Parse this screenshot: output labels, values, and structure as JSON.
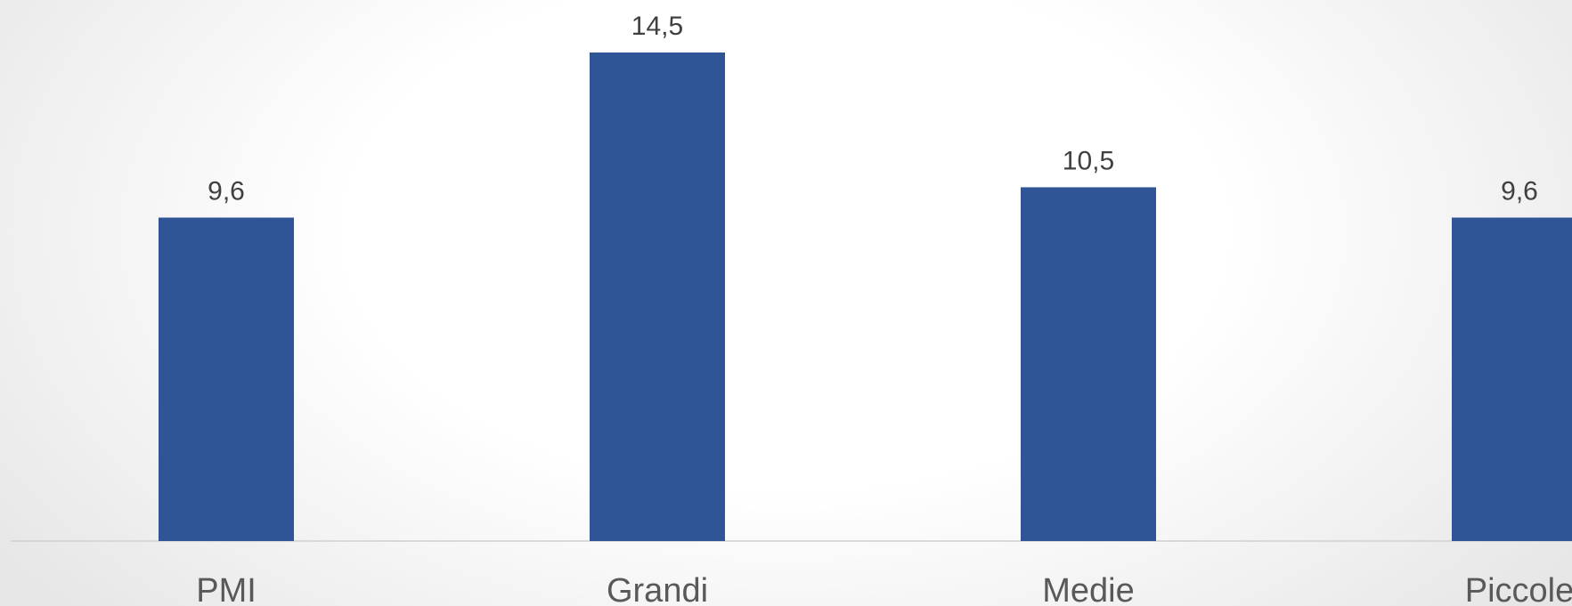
{
  "chart_data": {
    "type": "bar",
    "categories": [
      "PMI",
      "Grandi",
      "Medie",
      "Piccole"
    ],
    "values": [
      9.6,
      14.5,
      10.5,
      9.6
    ],
    "value_labels": [
      "9,6",
      "14,5",
      "10,5",
      "9,6"
    ],
    "title": "",
    "xlabel": "",
    "ylabel": "",
    "ylim": [
      0,
      14.5
    ],
    "grid": false,
    "legend": "none",
    "bar_color": "#2f5597",
    "axis_color": "#d0d0d0"
  }
}
